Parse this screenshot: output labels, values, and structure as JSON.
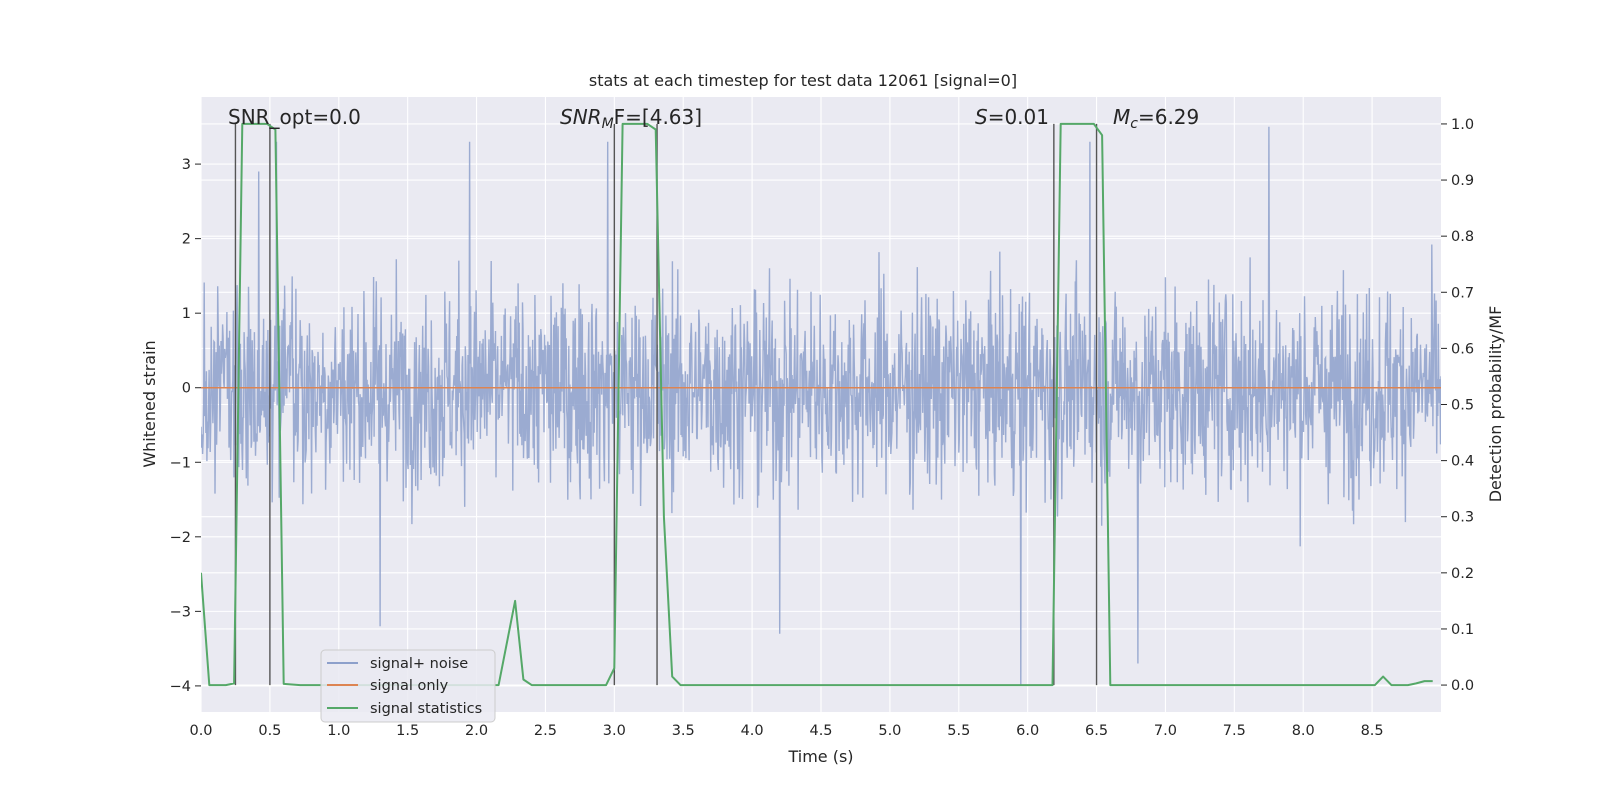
{
  "chart_data": {
    "type": "line",
    "title": "stats at each timestep for test data 12061 [signal=0]",
    "xlabel": "Time (s)",
    "ylabel": "Whitened strain",
    "y2label": "Detection probability/MF",
    "xlim": [
      0.0,
      9.0
    ],
    "ylim": [
      -4.35,
      3.9
    ],
    "y2lim": [
      -0.048,
      1.048
    ],
    "x_ticks": [
      0.0,
      0.5,
      1.0,
      1.5,
      2.0,
      2.5,
      3.0,
      3.5,
      4.0,
      4.5,
      5.0,
      5.5,
      6.0,
      6.5,
      7.0,
      7.5,
      8.0,
      8.5
    ],
    "x_tick_labels": [
      "0.0",
      "0.5",
      "1.0",
      "1.5",
      "2.0",
      "2.5",
      "3.0",
      "3.5",
      "4.0",
      "4.5",
      "5.0",
      "5.5",
      "6.0",
      "6.5",
      "7.0",
      "7.5",
      "8.0",
      "8.5"
    ],
    "y_ticks": [
      3,
      2,
      1,
      0,
      -1,
      -2,
      -3,
      -4
    ],
    "y_tick_labels": [
      "3",
      "2",
      "1",
      "0",
      "−1",
      "−2",
      "−3",
      "−4"
    ],
    "y2_ticks": [
      1.0,
      0.9,
      0.8,
      0.7,
      0.6,
      0.5,
      0.4,
      0.3,
      0.2,
      0.1,
      0.0
    ],
    "y2_tick_labels": [
      "1.0",
      "0.9",
      "0.8",
      "0.7",
      "0.6",
      "0.5",
      "0.4",
      "0.3",
      "0.2",
      "0.1",
      "0.0"
    ],
    "grid": true,
    "legend_position": "lower-left",
    "colors": {
      "plot_bg": "#eaeaf2",
      "grid": "#ffffff",
      "noise": "#8da0cb",
      "signal_only": "#dd8452",
      "statistics": "#55a868",
      "vline": "#555555",
      "text": "#262626"
    },
    "series": [
      {
        "name": "signal+ noise",
        "axis": "left",
        "description": "dense whitened strain noise, roughly within ±2, extremes near 3.5 and -4",
        "envelope_positive": [
          2.1,
          2.3,
          2.0,
          2.4,
          3.0,
          2.2,
          2.5,
          2.0,
          2.6,
          2.3
        ],
        "extremes": [
          [
            0.42,
            2.9
          ],
          [
            0.55,
            3.3
          ],
          [
            1.95,
            3.3
          ],
          [
            2.95,
            3.3
          ],
          [
            5.95,
            -4.0
          ],
          [
            6.45,
            3.3
          ],
          [
            7.75,
            3.5
          ],
          [
            6.8,
            -3.7
          ],
          [
            4.2,
            -3.3
          ],
          [
            1.3,
            -3.2
          ]
        ]
      },
      {
        "name": "signal only",
        "axis": "left",
        "x": [
          0.0,
          9.0
        ],
        "y": [
          0.0,
          0.0
        ]
      },
      {
        "name": "signal statistics",
        "axis": "right",
        "x": [
          0.0,
          0.06,
          0.18,
          0.24,
          0.3,
          0.48,
          0.54,
          0.6,
          0.72,
          0.84,
          0.96,
          1.08,
          1.2,
          1.32,
          1.44,
          1.56,
          1.68,
          1.8,
          1.92,
          2.04,
          2.16,
          2.28,
          2.34,
          2.4,
          2.46,
          2.58,
          2.7,
          2.82,
          2.94,
          3.0,
          3.06,
          3.24,
          3.3,
          3.36,
          3.42,
          3.48,
          3.6,
          4.5,
          5.4,
          6.0,
          6.18,
          6.24,
          6.48,
          6.54,
          6.6,
          6.66,
          6.78,
          7.5,
          8.4,
          8.52,
          8.58,
          8.64,
          8.76,
          8.82,
          8.88,
          8.94
        ],
        "y": [
          0.2,
          0.0,
          0.0,
          0.003,
          1.0,
          1.0,
          0.99,
          0.002,
          0.0,
          0.0,
          0.0,
          0.0,
          0.0,
          0.0,
          0.0,
          0.0,
          0.0,
          0.0,
          0.0,
          0.0,
          0.0,
          0.15,
          0.01,
          0.0,
          0.0,
          0.0,
          0.0,
          0.0,
          0.0,
          0.03,
          1.0,
          1.0,
          0.99,
          0.3,
          0.015,
          0.0,
          0.0,
          0.0,
          0.0,
          0.0,
          0.0,
          1.0,
          1.0,
          0.98,
          0.0,
          0.0,
          0.0,
          0.0,
          0.0,
          0.0,
          0.015,
          0.0,
          0.0,
          0.003,
          0.007,
          0.007
        ]
      }
    ],
    "vertical_lines": [
      0.25,
      0.5,
      3.0,
      3.31,
      6.19,
      6.5
    ],
    "annotations": {
      "snr_opt": "SNR_opt=0.0",
      "snr_mf_symbol": "SNR",
      "snr_mf_sub": "M",
      "snr_mf_tail": "F=[4.63]",
      "s_symbol": "S",
      "s_tail": "=0.01",
      "mc_symbol": "M",
      "mc_sub": "c",
      "mc_tail": "=6.29"
    },
    "legend": {
      "items": [
        "signal+ noise",
        "signal only",
        "signal statistics"
      ]
    }
  }
}
